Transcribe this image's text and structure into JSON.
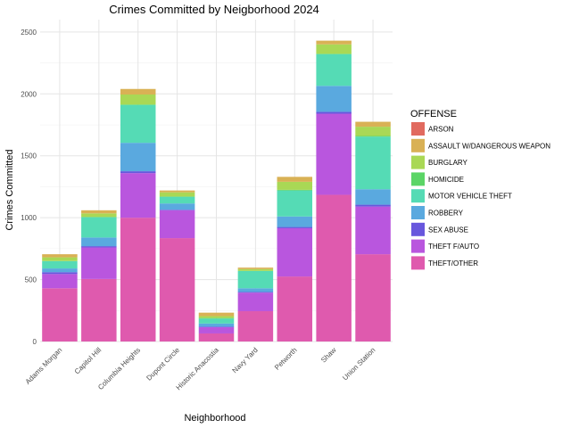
{
  "chart_data": {
    "type": "bar",
    "stacked": true,
    "title": "Crimes Committed by Neigborhood 2024",
    "xlabel": "Neighborhood",
    "ylabel": "Crimes Committed",
    "ylim": [
      0,
      2500
    ],
    "yticks": [
      0,
      500,
      1000,
      1500,
      2000,
      2500
    ],
    "grid": true,
    "legend_position": "right",
    "legend_title": "OFFENSE",
    "categories": [
      "Adams Morgan",
      "Capitol Hill",
      "Columbia Heights",
      "Dupont Circle",
      "Historic Anacostia",
      "Navy Yard",
      "Petworth",
      "Shaw",
      "Union Station"
    ],
    "series": [
      {
        "name": "ARSON",
        "color": "#E16A5F",
        "values": [
          0,
          0,
          0,
          0,
          0,
          0,
          0,
          0,
          0
        ]
      },
      {
        "name": "ASSAULT W/DANGEROUS WEAPON",
        "color": "#D9B155",
        "values": [
          25,
          25,
          45,
          15,
          28,
          12,
          40,
          30,
          40
        ]
      },
      {
        "name": "BURGLARY",
        "color": "#A9D855",
        "values": [
          30,
          30,
          80,
          35,
          15,
          15,
          65,
          75,
          75
        ]
      },
      {
        "name": "HOMICIDE",
        "color": "#5BD566",
        "values": [
          0,
          0,
          5,
          0,
          5,
          0,
          5,
          5,
          5
        ]
      },
      {
        "name": "MOTOR VEHICLE THEFT",
        "color": "#55DBB5",
        "values": [
          60,
          165,
          305,
          55,
          40,
          140,
          210,
          255,
          425
        ]
      },
      {
        "name": "ROBBERY",
        "color": "#5AA9DF",
        "values": [
          30,
          70,
          230,
          50,
          25,
          30,
          85,
          210,
          125
        ]
      },
      {
        "name": "SEX ABUSE",
        "color": "#6857DD",
        "values": [
          15,
          10,
          15,
          5,
          5,
          5,
          10,
          15,
          15
        ]
      },
      {
        "name": "THEFT F/AUTO",
        "color": "#B956DE",
        "values": [
          115,
          255,
          360,
          225,
          50,
          150,
          390,
          655,
          385
        ]
      },
      {
        "name": "THEFT/OTHER",
        "color": "#DF5AAE",
        "values": [
          430,
          505,
          1000,
          835,
          65,
          245,
          525,
          1185,
          705
        ]
      }
    ]
  }
}
